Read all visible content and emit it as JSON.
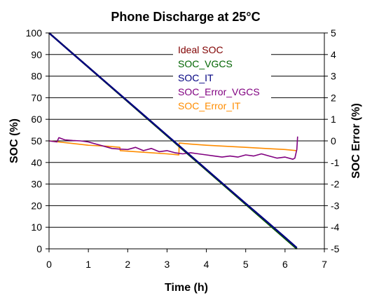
{
  "chart_data": {
    "type": "line",
    "title": "Phone Discharge at 25°C",
    "xlabel": "Time (h)",
    "ylabel": "SOC (%)",
    "y2label": "SOC Error (%)",
    "xlim": [
      0,
      7
    ],
    "ylim": [
      0,
      100
    ],
    "y2lim": [
      -5,
      5
    ],
    "xticks": [
      "0",
      "1",
      "2",
      "3",
      "4",
      "5",
      "6",
      "7"
    ],
    "yticks": [
      "0",
      "10",
      "20",
      "30",
      "40",
      "50",
      "60",
      "70",
      "80",
      "90",
      "100"
    ],
    "y2ticks": [
      "-5",
      "-4",
      "-3",
      "-2",
      "-1",
      "0",
      "1",
      "2",
      "3",
      "4",
      "5"
    ],
    "grid": true,
    "legend_position": "top-right inside",
    "series": [
      {
        "name": "Ideal SOC",
        "color": "#800000",
        "axis": "left",
        "x": [
          0,
          6.3
        ],
        "y": [
          100,
          0
        ]
      },
      {
        "name": "SOC_VGCS",
        "color": "#006400",
        "axis": "left",
        "x": [
          0,
          6.3
        ],
        "y": [
          100,
          0
        ]
      },
      {
        "name": "SOC_IT",
        "color": "#000080",
        "axis": "left",
        "x": [
          0,
          0.5,
          1,
          1.5,
          2,
          2.5,
          3,
          3.5,
          4,
          4.5,
          5,
          5.5,
          6,
          6.3
        ],
        "y": [
          100,
          92,
          84.2,
          76.3,
          68.4,
          60.5,
          52.6,
          44.7,
          36.8,
          28.9,
          21.0,
          13.2,
          5.3,
          0.5
        ]
      },
      {
        "name": "SOC_Error_VGCS",
        "color": "#800080",
        "axis": "right",
        "x": [
          0,
          0.2,
          0.25,
          0.4,
          0.6,
          0.8,
          1.0,
          1.2,
          1.4,
          1.6,
          1.8,
          2.0,
          2.2,
          2.4,
          2.6,
          2.8,
          3.0,
          3.2,
          3.4,
          3.6,
          3.8,
          4.0,
          4.2,
          4.4,
          4.6,
          4.8,
          5.0,
          5.2,
          5.4,
          5.6,
          5.8,
          6.0,
          6.2,
          6.25,
          6.3,
          6.32
        ],
        "y": [
          0.0,
          -0.05,
          0.15,
          0.05,
          0.02,
          0.0,
          -0.05,
          -0.15,
          -0.25,
          -0.35,
          -0.38,
          -0.4,
          -0.3,
          -0.45,
          -0.35,
          -0.5,
          -0.45,
          -0.55,
          -0.6,
          -0.55,
          -0.6,
          -0.65,
          -0.7,
          -0.75,
          -0.7,
          -0.75,
          -0.65,
          -0.7,
          -0.6,
          -0.7,
          -0.8,
          -0.75,
          -0.85,
          -0.8,
          -0.4,
          0.2
        ]
      },
      {
        "name": "SOC_Error_IT",
        "color": "#FF8C00",
        "axis": "right",
        "x": [
          0,
          0.5,
          1.0,
          1.5,
          1.8,
          1.81,
          2.2,
          2.6,
          3.0,
          3.3,
          3.31,
          3.6,
          4.0,
          4.5,
          5.0,
          5.5,
          6.0,
          6.3
        ],
        "y": [
          0.0,
          -0.1,
          -0.2,
          -0.25,
          -0.3,
          -0.45,
          -0.5,
          -0.55,
          -0.6,
          -0.65,
          -0.1,
          -0.15,
          -0.2,
          -0.25,
          -0.3,
          -0.35,
          -0.4,
          -0.45
        ]
      }
    ]
  }
}
